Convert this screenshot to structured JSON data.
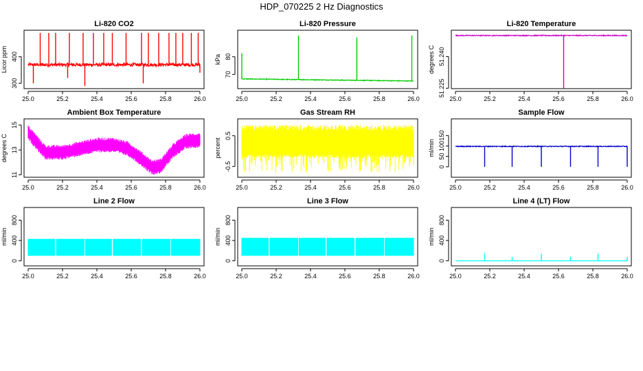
{
  "page_title": "HDP_070225  2 Hz Diagnostics",
  "chart_data": [
    {
      "type": "line",
      "title": "Li-820 CO2",
      "ylabel": "Licor ppm",
      "color": "#ff0000",
      "xlim": [
        25.0,
        26.0
      ],
      "ylim": [
        280,
        500
      ],
      "xticks": [
        "25.0",
        "25.2",
        "25.4",
        "25.6",
        "25.8",
        "26.0"
      ],
      "yticks": [
        300,
        400
      ],
      "series": [
        {
          "baseline": 370,
          "noise": 6,
          "spikes": [
            [
              25.03,
              300
            ],
            [
              25.07,
              490
            ],
            [
              25.12,
              490
            ],
            [
              25.16,
              490
            ],
            [
              25.23,
              320
            ],
            [
              25.24,
              490
            ],
            [
              25.32,
              490
            ],
            [
              25.33,
              290
            ],
            [
              25.38,
              490
            ],
            [
              25.44,
              490
            ],
            [
              25.49,
              490
            ],
            [
              25.57,
              490
            ],
            [
              25.66,
              490
            ],
            [
              25.67,
              300
            ],
            [
              25.7,
              490
            ],
            [
              25.76,
              490
            ],
            [
              25.82,
              490
            ],
            [
              25.86,
              490
            ],
            [
              25.9,
              490
            ],
            [
              25.95,
              490
            ],
            [
              25.99,
              490
            ],
            [
              26.0,
              340
            ]
          ]
        }
      ]
    },
    {
      "type": "line",
      "title": "Li-820 Pressure",
      "ylabel": "kPa",
      "color": "#00cc00",
      "xlim": [
        25.0,
        26.0
      ],
      "ylim": [
        62,
        95
      ],
      "xticks": [
        "25.0",
        "25.2",
        "25.4",
        "25.6",
        "25.8",
        "26.0"
      ],
      "yticks": [
        70,
        80
      ],
      "series": [
        {
          "baseline_start": 67.5,
          "baseline_end": 66.3,
          "noise": 0.2,
          "spikes": [
            [
              25.0,
              82
            ],
            [
              25.33,
              92
            ],
            [
              25.67,
              91
            ],
            [
              25.99,
              92
            ]
          ]
        }
      ]
    },
    {
      "type": "line",
      "title": "Li-820 Temperature",
      "ylabel": "degrees C",
      "color": "#cc00cc",
      "xlim": [
        25.0,
        26.0
      ],
      "ylim": [
        51.2248,
        51.2525
      ],
      "xticks": [
        "25.0",
        "25.2",
        "25.4",
        "25.6",
        "25.8",
        "26.0"
      ],
      "yticks": [
        51.225,
        51.24
      ],
      "series": [
        {
          "baseline": 51.25,
          "noise": 0.0002,
          "spikes": [
            [
              25.63,
              51.225
            ]
          ]
        }
      ]
    },
    {
      "type": "area",
      "title": "Ambient Box Temperature",
      "ylabel": "degrees C",
      "color": "#ff00ff",
      "xlim": [
        25.0,
        26.0
      ],
      "ylim": [
        10.8,
        15.5
      ],
      "xticks": [
        "25.0",
        "25.2",
        "25.4",
        "25.6",
        "25.8",
        "26.0"
      ],
      "yticks": [
        11,
        13,
        15
      ],
      "series": [
        {
          "profile": [
            [
              25.0,
              14.4
            ],
            [
              25.05,
              13.6
            ],
            [
              25.1,
              12.8
            ],
            [
              25.2,
              12.8
            ],
            [
              25.3,
              13.1
            ],
            [
              25.4,
              13.4
            ],
            [
              25.5,
              13.4
            ],
            [
              25.58,
              13.1
            ],
            [
              25.65,
              12.4
            ],
            [
              25.72,
              11.6
            ],
            [
              25.77,
              11.7
            ],
            [
              25.85,
              13.0
            ],
            [
              25.92,
              13.7
            ],
            [
              26.0,
              13.8
            ]
          ],
          "band": 0.7,
          "noise": 0.25
        }
      ]
    },
    {
      "type": "area",
      "title": "Gas Stream RH",
      "ylabel": "percent",
      "color": "#ffff00",
      "xlim": [
        25.0,
        26.0
      ],
      "ylim": [
        -0.85,
        1.05
      ],
      "xticks": [
        "25.0",
        "25.2",
        "25.4",
        "25.6",
        "25.8",
        "26.0"
      ],
      "yticks": [
        -0.5,
        0.5
      ],
      "series": [
        {
          "low": -0.1,
          "high": 0.65,
          "noise_low": 0.6,
          "noise_high": 0.2
        }
      ]
    },
    {
      "type": "line",
      "title": "Sample Flow",
      "ylabel": "ml/min",
      "color": "#0000cc",
      "xlim": [
        25.0,
        26.0
      ],
      "ylim": [
        -50,
        230
      ],
      "xticks": [
        "25.0",
        "25.2",
        "25.4",
        "25.6",
        "25.8",
        "26.0"
      ],
      "yticks": [
        0,
        50,
        100,
        150
      ],
      "series": [
        {
          "baseline": 98,
          "noise": 2,
          "spikes": [
            [
              25.17,
              0
            ],
            [
              25.33,
              0
            ],
            [
              25.5,
              0
            ],
            [
              25.67,
              0
            ],
            [
              25.83,
              0
            ],
            [
              26.0,
              0
            ]
          ]
        }
      ]
    },
    {
      "type": "area",
      "title": "Line 2 Flow",
      "ylabel": "ml/min",
      "color": "#00ffff",
      "xlim": [
        25.0,
        26.0
      ],
      "ylim": [
        -100,
        1050
      ],
      "xticks": [
        "25.0",
        "25.2",
        "25.4",
        "25.6",
        "25.8",
        "26.0"
      ],
      "yticks": [
        0,
        400,
        800
      ],
      "series": [
        {
          "low": 100,
          "high": 430,
          "gaps": [
            25.16,
            25.33,
            25.49,
            25.66,
            25.83
          ]
        }
      ]
    },
    {
      "type": "area",
      "title": "Line 3 Flow",
      "ylabel": "ml/min",
      "color": "#00ffff",
      "xlim": [
        25.0,
        26.0
      ],
      "ylim": [
        -100,
        1050
      ],
      "xticks": [
        "25.0",
        "25.2",
        "25.4",
        "25.6",
        "25.8",
        "26.0"
      ],
      "yticks": [
        0,
        400,
        800
      ],
      "series": [
        {
          "low": 100,
          "high": 450,
          "gaps": [
            25.16,
            25.33,
            25.49,
            25.66,
            25.83
          ]
        }
      ]
    },
    {
      "type": "line",
      "title": "Line 4 (LT) Flow",
      "ylabel": "ml/min",
      "color": "#00ffff",
      "xlim": [
        25.0,
        26.0
      ],
      "ylim": [
        -100,
        1050
      ],
      "xticks": [
        "25.0",
        "25.2",
        "25.4",
        "25.6",
        "25.8",
        "26.0"
      ],
      "yticks": [
        0,
        400,
        800
      ],
      "series": [
        {
          "baseline": 0,
          "noise": 0,
          "spikes": [
            [
              25.17,
              150
            ],
            [
              25.33,
              80
            ],
            [
              25.5,
              140
            ],
            [
              25.67,
              80
            ],
            [
              25.83,
              140
            ],
            [
              26.0,
              80
            ]
          ]
        }
      ]
    }
  ]
}
